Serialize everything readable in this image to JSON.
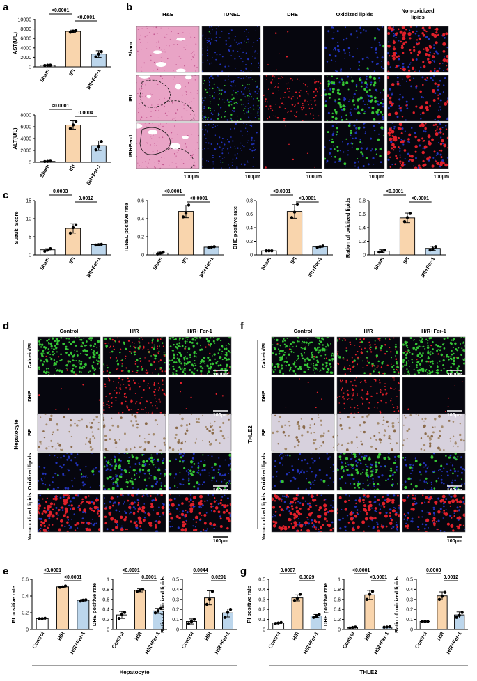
{
  "panel_letters": {
    "a": "a",
    "b": "b",
    "c": "c",
    "d": "d",
    "e": "e",
    "f": "f",
    "g": "g"
  },
  "colors": {
    "sham": "#ffffff",
    "iri": "#f9d5ad",
    "fer": "#bcd6ec",
    "dot": "#000000",
    "he_bg": "#e9a4c6",
    "he_vessel": "#ffffff",
    "nuclei": "#2233bb",
    "green": "#35c435",
    "red": "#e0202a",
    "bf_bg": "#d7d1dd"
  },
  "panel_b": {
    "col_labels": [
      "H&E",
      "TUNEL",
      "DHE",
      "Oxidized lipids",
      "Non-oxidized lipids"
    ],
    "row_labels": [
      "Sham",
      "IRI",
      "IRI+Fer-1"
    ],
    "scale_bar": "100μm"
  },
  "panel_d": {
    "col_labels": [
      "Control",
      "H/R",
      "H/R+Fer-1"
    ],
    "row_labels": [
      "Calcein/PI",
      "DHE",
      "BF",
      "Oxidized lipids",
      "Non-oxidized lipids"
    ],
    "group_label": "Hepatocyte",
    "scale_bars": [
      "200μm",
      "100μm",
      "100μm",
      "100μm"
    ]
  },
  "panel_f": {
    "col_labels": [
      "Control",
      "H/R",
      "H/R+Fer-1"
    ],
    "row_labels": [
      "Calcein/PI",
      "DHE",
      "BF",
      "Oxidized lipids",
      "Non-oxidized lipids"
    ],
    "group_label": "THLE2",
    "scale_bars": [
      "200μm",
      "100μm",
      "100μm",
      "100μm"
    ]
  },
  "group_labels": {
    "e": "Hepatocyte",
    "g": "THLE2"
  },
  "chart_data": [
    {
      "id": "a1",
      "type": "bar",
      "categories": [
        "Sham",
        "IRI",
        "IRI+Fer-1"
      ],
      "values": [
        320,
        7500,
        2700
      ],
      "errors": [
        60,
        250,
        700
      ],
      "ylabel": "AST(U/L)",
      "ylim": [
        0,
        10000
      ],
      "yticks": [
        0,
        2000,
        4000,
        6000,
        8000,
        10000
      ],
      "points": [
        [
          280,
          330,
          350
        ],
        [
          7300,
          7550,
          7650
        ],
        [
          2100,
          2700,
          3200
        ]
      ],
      "pvalues": [
        {
          "from": 0,
          "to": 1,
          "label": "<0.0001"
        },
        {
          "from": 1,
          "to": 2,
          "label": "<0.0001"
        }
      ]
    },
    {
      "id": "a2",
      "type": "bar",
      "categories": [
        "Sham",
        "IRI",
        "IRI+Fer-1"
      ],
      "values": [
        150,
        6300,
        2800
      ],
      "errors": [
        40,
        700,
        800
      ],
      "ylabel": "ALT(U/L)",
      "ylim": [
        0,
        8000
      ],
      "yticks": [
        0,
        2000,
        4000,
        6000,
        8000
      ],
      "points": [
        [
          120,
          150,
          180
        ],
        [
          5700,
          6300,
          6900
        ],
        [
          2100,
          2700,
          3500
        ]
      ],
      "pvalues": [
        {
          "from": 0,
          "to": 1,
          "label": "<0.0001"
        },
        {
          "from": 1,
          "to": 2,
          "label": "0.0004"
        }
      ]
    },
    {
      "id": "c1",
      "type": "bar",
      "categories": [
        "Sham",
        "IRI",
        "IRI+Fer-1"
      ],
      "values": [
        1.4,
        7.3,
        2.8
      ],
      "errors": [
        0.3,
        1.3,
        0.15
      ],
      "ylabel": "Suzuki Score",
      "ylim": [
        0,
        15
      ],
      "yticks": [
        0,
        5,
        10,
        15
      ],
      "points": [
        [
          1.0,
          1.3,
          1.7
        ],
        [
          6.0,
          7.5,
          8.3
        ],
        [
          2.7,
          2.8,
          2.9
        ]
      ],
      "pvalues": [
        {
          "from": 0,
          "to": 1,
          "label": "0.0003"
        },
        {
          "from": 1,
          "to": 2,
          "label": "0.0012"
        }
      ]
    },
    {
      "id": "c2",
      "type": "bar",
      "categories": [
        "Sham",
        "IRI",
        "IRI+Fer-1"
      ],
      "values": [
        0.02,
        0.48,
        0.085
      ],
      "errors": [
        0.01,
        0.07,
        0.005
      ],
      "ylabel": "TUNEL positive rate",
      "ylim": [
        0,
        0.6
      ],
      "yticks": [
        0,
        0.2,
        0.4,
        0.6
      ],
      "points": [
        [
          0.01,
          0.02,
          0.03
        ],
        [
          0.42,
          0.46,
          0.55
        ],
        [
          0.08,
          0.085,
          0.09
        ]
      ],
      "pvalues": [
        {
          "from": 0,
          "to": 1,
          "label": "<0.0001"
        },
        {
          "from": 1,
          "to": 2,
          "label": "<0.0001"
        }
      ]
    },
    {
      "id": "c3",
      "type": "bar",
      "categories": [
        "Sham",
        "IRI",
        "IRI+Fer-1"
      ],
      "values": [
        0.06,
        0.64,
        0.12
      ],
      "errors": [
        0.005,
        0.1,
        0.01
      ],
      "ylabel": "DHE positive rate",
      "ylim": [
        0,
        0.8
      ],
      "yticks": [
        0,
        0.2,
        0.4,
        0.6,
        0.8
      ],
      "points": [
        [
          0.06,
          0.06,
          0.06
        ],
        [
          0.55,
          0.63,
          0.74
        ],
        [
          0.11,
          0.12,
          0.13
        ]
      ],
      "pvalues": [
        {
          "from": 0,
          "to": 1,
          "label": "<0.0001"
        },
        {
          "from": 1,
          "to": 2,
          "label": "<0.0001"
        }
      ]
    },
    {
      "id": "c4",
      "type": "bar",
      "categories": [
        "Sham",
        "IRI",
        "IRI+Fer-1"
      ],
      "values": [
        0.055,
        0.545,
        0.095
      ],
      "errors": [
        0.02,
        0.07,
        0.03
      ],
      "ylabel": "Ration of oxidized lipids",
      "ylim": [
        0,
        0.8
      ],
      "yticks": [
        0,
        0.2,
        0.4,
        0.6,
        0.8
      ],
      "points": [
        [
          0.04,
          0.05,
          0.07
        ],
        [
          0.49,
          0.55,
          0.61
        ],
        [
          0.07,
          0.09,
          0.12
        ]
      ],
      "pvalues": [
        {
          "from": 0,
          "to": 1,
          "label": "<0.0001"
        },
        {
          "from": 1,
          "to": 2,
          "label": "<0.0001"
        }
      ]
    },
    {
      "id": "e1",
      "type": "bar",
      "categories": [
        "Control",
        "H/R",
        "H/R+Fer-1"
      ],
      "values": [
        0.13,
        0.51,
        0.35
      ],
      "errors": [
        0.005,
        0.01,
        0.01
      ],
      "ylabel": "PI positive rate",
      "ylim": [
        0,
        0.6
      ],
      "yticks": [
        0,
        0.2,
        0.4,
        0.6
      ],
      "points": [
        [
          0.13,
          0.13,
          0.135
        ],
        [
          0.505,
          0.51,
          0.52
        ],
        [
          0.34,
          0.35,
          0.355
        ]
      ],
      "pvalues": [
        {
          "from": 0,
          "to": 1,
          "label": "<0.0001"
        },
        {
          "from": 1,
          "to": 2,
          "label": "<0.0001"
        }
      ]
    },
    {
      "id": "e2",
      "type": "bar",
      "categories": [
        "Control",
        "H/R",
        "H/R+Fer-1"
      ],
      "values": [
        0.29,
        0.78,
        0.37
      ],
      "errors": [
        0.07,
        0.03,
        0.05
      ],
      "ylabel": "DHE positive rate",
      "ylim": [
        0,
        1.0
      ],
      "yticks": [
        0,
        0.2,
        0.4,
        0.6,
        0.8,
        1.0
      ],
      "points": [
        [
          0.22,
          0.3,
          0.34
        ],
        [
          0.76,
          0.78,
          0.8
        ],
        [
          0.33,
          0.37,
          0.42
        ]
      ],
      "pvalues": [
        {
          "from": 0,
          "to": 1,
          "label": "<0.0001"
        },
        {
          "from": 1,
          "to": 2,
          "label": "0.0001"
        }
      ]
    },
    {
      "id": "e3",
      "type": "bar",
      "categories": [
        "Control",
        "H/R",
        "H/R+Fer-1"
      ],
      "values": [
        0.08,
        0.315,
        0.165
      ],
      "errors": [
        0.025,
        0.07,
        0.04
      ],
      "ylabel": "Ratio of oxidized lipids",
      "ylim": [
        0,
        0.5
      ],
      "yticks": [
        0,
        0.1,
        0.2,
        0.3,
        0.4,
        0.5
      ],
      "points": [
        [
          0.06,
          0.08,
          0.1
        ],
        [
          0.25,
          0.3,
          0.38
        ],
        [
          0.12,
          0.17,
          0.2
        ]
      ],
      "pvalues": [
        {
          "from": 0,
          "to": 1,
          "label": "0.0044"
        },
        {
          "from": 1,
          "to": 2,
          "label": "0.0291"
        }
      ]
    },
    {
      "id": "g1",
      "type": "bar",
      "categories": [
        "Control",
        "H/R",
        "H/R+Fer-1"
      ],
      "values": [
        0.065,
        0.315,
        0.135
      ],
      "errors": [
        0.005,
        0.03,
        0.015
      ],
      "ylabel": "PI positive rate",
      "ylim": [
        0,
        0.5
      ],
      "yticks": [
        0,
        0.1,
        0.2,
        0.3,
        0.4,
        0.5
      ],
      "points": [
        [
          0.06,
          0.065,
          0.07
        ],
        [
          0.29,
          0.31,
          0.35
        ],
        [
          0.12,
          0.135,
          0.15
        ]
      ],
      "pvalues": [
        {
          "from": 0,
          "to": 1,
          "label": "0.0007"
        },
        {
          "from": 1,
          "to": 2,
          "label": "0.0029"
        }
      ]
    },
    {
      "id": "g2",
      "type": "bar",
      "categories": [
        "Control",
        "H/R",
        "H/R+Fer-1"
      ],
      "values": [
        0.04,
        0.69,
        0.05
      ],
      "errors": [
        0.01,
        0.09,
        0.005
      ],
      "ylabel": "DHE positive rate",
      "ylim": [
        0,
        1.0
      ],
      "yticks": [
        0,
        0.2,
        0.4,
        0.6,
        0.8,
        1.0
      ],
      "points": [
        [
          0.03,
          0.04,
          0.05
        ],
        [
          0.6,
          0.7,
          0.76
        ],
        [
          0.045,
          0.05,
          0.055
        ]
      ],
      "pvalues": [
        {
          "from": 0,
          "to": 1,
          "label": "<0.0001"
        },
        {
          "from": 1,
          "to": 2,
          "label": "<0.0001"
        }
      ]
    },
    {
      "id": "g3",
      "type": "bar",
      "categories": [
        "Control",
        "H/R",
        "H/R+Fer-1"
      ],
      "values": [
        0.08,
        0.335,
        0.145
      ],
      "errors": [
        0.003,
        0.04,
        0.03
      ],
      "ylabel": "Ratio of oxidized lipids",
      "ylim": [
        0,
        0.5
      ],
      "yticks": [
        0,
        0.1,
        0.2,
        0.3,
        0.4,
        0.5
      ],
      "points": [
        [
          0.08,
          0.08,
          0.08
        ],
        [
          0.3,
          0.33,
          0.37
        ],
        [
          0.12,
          0.14,
          0.17
        ]
      ],
      "pvalues": [
        {
          "from": 0,
          "to": 1,
          "label": "0.0003"
        },
        {
          "from": 1,
          "to": 2,
          "label": "0.0012"
        }
      ]
    }
  ]
}
